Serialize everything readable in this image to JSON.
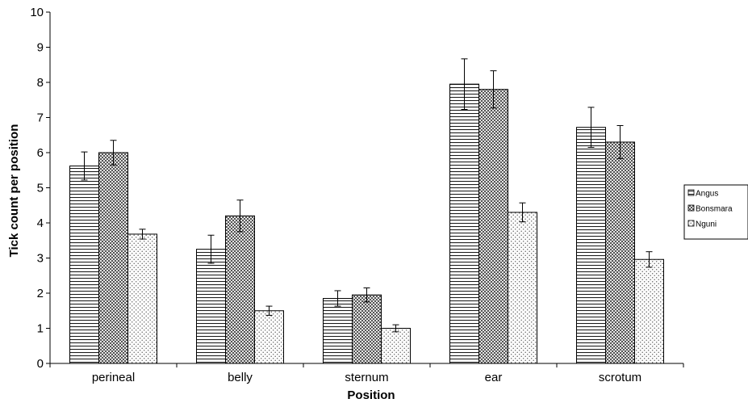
{
  "chart_data": {
    "type": "bar",
    "title": "",
    "xlabel": "Position",
    "ylabel": "Tick count per position",
    "ylim": [
      0,
      10
    ],
    "yticks": [
      "0",
      "1",
      "2",
      "3",
      "4",
      "5",
      "6",
      "7",
      "8",
      "9",
      "10"
    ],
    "categories": [
      "perineal",
      "belly",
      "sternum",
      "ear",
      "scrotum"
    ],
    "series": [
      {
        "name": "Angus",
        "pattern": "horizontal-lines",
        "values": [
          5.62,
          3.25,
          1.85,
          7.95,
          6.72
        ],
        "error": [
          0.4,
          0.4,
          0.22,
          0.72,
          0.57
        ]
      },
      {
        "name": "Bonsmara",
        "pattern": "crosshatch",
        "values": [
          6.0,
          4.2,
          1.95,
          7.8,
          6.3
        ],
        "error": [
          0.35,
          0.45,
          0.2,
          0.53,
          0.47
        ]
      },
      {
        "name": "Nguni",
        "pattern": "dots",
        "values": [
          3.68,
          1.5,
          1.0,
          4.3,
          2.96
        ],
        "error": [
          0.14,
          0.13,
          0.1,
          0.27,
          0.22
        ]
      }
    ],
    "grid": false,
    "legend_position": "right",
    "error_bars": true
  }
}
